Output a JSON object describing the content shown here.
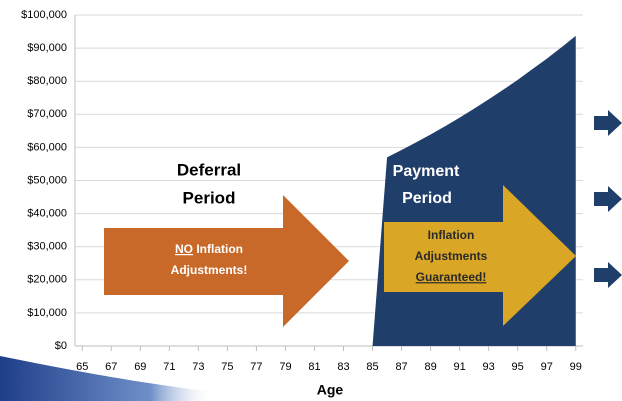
{
  "chart_data": {
    "type": "area",
    "xlabel": "Age",
    "x": [
      85,
      86,
      87,
      88,
      89,
      90,
      91,
      92,
      93,
      94,
      95,
      96,
      97,
      98,
      99
    ],
    "series": [
      {
        "color": "#1f3e6a",
        "x": [
          85,
          86,
          87,
          88,
          89,
          90,
          91,
          92,
          93,
          94,
          95,
          96,
          97,
          98,
          99
        ],
        "values": [
          0,
          57000,
          59200,
          61500,
          63900,
          66400,
          69000,
          71700,
          74500,
          77400,
          80400,
          83600,
          86800,
          90200,
          93700
        ]
      }
    ],
    "xlim": [
      64.5,
      99.5
    ],
    "xticks": [
      65,
      67,
      69,
      71,
      73,
      75,
      77,
      79,
      81,
      83,
      85,
      87,
      89,
      91,
      93,
      95,
      97,
      99
    ],
    "ylim": [
      0,
      100000
    ],
    "yticks": [
      {
        "value": 0,
        "label": "$0"
      },
      {
        "value": 10000,
        "label": "$10,000"
      },
      {
        "value": 20000,
        "label": "$20,000"
      },
      {
        "value": 30000,
        "label": "$30,000"
      },
      {
        "value": 40000,
        "label": "$40,000"
      },
      {
        "value": 50000,
        "label": "$50,000"
      },
      {
        "value": 60000,
        "label": "$60,000"
      },
      {
        "value": 70000,
        "label": "$70,000"
      },
      {
        "value": 80000,
        "label": "$80,000"
      },
      {
        "value": 90000,
        "label": "$90,000"
      },
      {
        "value": 100000,
        "label": "$100,000"
      }
    ],
    "grid": true,
    "annotations": {
      "deferral": [
        "Deferral",
        "Period"
      ],
      "payment": [
        "Payment",
        "Period"
      ],
      "deferral_arrow": [
        "NO",
        "Inflation",
        "Adjustments!"
      ],
      "payment_arrow": [
        "Inflation",
        "Adjustments",
        "Guaranteed!"
      ]
    }
  }
}
